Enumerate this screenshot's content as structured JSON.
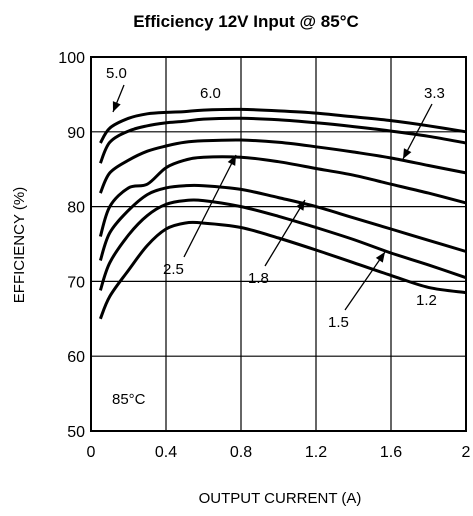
{
  "chart_data": {
    "type": "line",
    "title": "Efficiency 12V Input @ 85°C",
    "xlabel": "OUTPUT CURRENT (A)",
    "ylabel": "EFFICIENCY (%)",
    "xlim": [
      0,
      2
    ],
    "ylim": [
      50,
      100
    ],
    "xticks": [
      "0",
      "0.4",
      "0.8",
      "1.2",
      "1.6",
      "2"
    ],
    "yticks": [
      "50",
      "60",
      "70",
      "80",
      "90",
      "100"
    ],
    "grid": true,
    "legend": "none",
    "annotation": "85°C",
    "series": [
      {
        "name": "5.0",
        "x": [
          0.05,
          0.1,
          0.2,
          0.3,
          0.4,
          0.5,
          0.6,
          0.8,
          1.0,
          1.2,
          1.4,
          1.6,
          1.8,
          2.0
        ],
        "y": [
          88.5,
          90.5,
          91.8,
          92.4,
          92.6,
          92.7,
          92.9,
          93.0,
          92.8,
          92.5,
          92.0,
          91.5,
          90.8,
          90.0
        ]
      },
      {
        "name": "6.0",
        "x": [
          0.05,
          0.1,
          0.2,
          0.3,
          0.4,
          0.5,
          0.6,
          0.8,
          1.0,
          1.2,
          1.4,
          1.6,
          1.8,
          2.0
        ],
        "y": [
          85.8,
          88.6,
          90.1,
          90.8,
          91.2,
          91.4,
          91.7,
          91.8,
          91.6,
          91.2,
          90.7,
          90.1,
          89.4,
          88.5
        ]
      },
      {
        "name": "3.3",
        "x": [
          0.05,
          0.1,
          0.2,
          0.3,
          0.4,
          0.5,
          0.6,
          0.8,
          1.0,
          1.2,
          1.4,
          1.6,
          1.8,
          2.0
        ],
        "y": [
          81.8,
          84.5,
          86.2,
          87.4,
          88.1,
          88.6,
          88.8,
          88.9,
          88.6,
          88.0,
          87.3,
          86.5,
          85.5,
          84.5
        ]
      },
      {
        "name": "2.5",
        "x": [
          0.05,
          0.1,
          0.2,
          0.3,
          0.4,
          0.5,
          0.6,
          0.8,
          1.0,
          1.2,
          1.4,
          1.6,
          1.8,
          2.0
        ],
        "y": [
          76.0,
          80.0,
          82.5,
          83.0,
          85.2,
          86.2,
          86.6,
          86.6,
          86.0,
          85.1,
          84.2,
          83.0,
          81.8,
          80.5
        ]
      },
      {
        "name": "1.8",
        "x": [
          0.05,
          0.1,
          0.2,
          0.3,
          0.4,
          0.5,
          0.6,
          0.8,
          1.0,
          1.2,
          1.4,
          1.6,
          1.8,
          2.0
        ],
        "y": [
          72.8,
          76.5,
          79.5,
          81.6,
          82.5,
          82.8,
          82.8,
          82.3,
          81.2,
          80.0,
          78.5,
          77.0,
          75.5,
          74.0
        ]
      },
      {
        "name": "1.5",
        "x": [
          0.05,
          0.1,
          0.2,
          0.3,
          0.4,
          0.5,
          0.6,
          0.8,
          1.0,
          1.2,
          1.4,
          1.6,
          1.8,
          2.0
        ],
        "y": [
          68.8,
          72.5,
          76.2,
          78.8,
          80.3,
          80.8,
          80.8,
          80.0,
          78.7,
          77.2,
          75.6,
          73.8,
          72.2,
          70.5
        ]
      },
      {
        "name": "1.2",
        "x": [
          0.05,
          0.1,
          0.2,
          0.3,
          0.4,
          0.5,
          0.6,
          0.8,
          1.0,
          1.2,
          1.4,
          1.6,
          1.8,
          2.0
        ],
        "y": [
          65.0,
          68.0,
          71.5,
          74.8,
          77.0,
          77.8,
          77.8,
          77.2,
          75.8,
          74.2,
          72.5,
          70.8,
          69.2,
          68.5
        ]
      }
    ]
  }
}
